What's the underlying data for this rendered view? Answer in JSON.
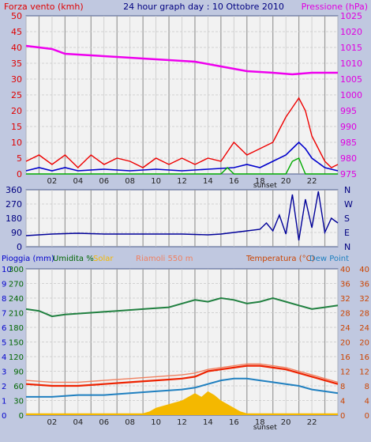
{
  "colors": {
    "background": "#c0c8e0",
    "plot_area": "#f2f2f2",
    "grid_major": "#999999",
    "grid_minor": "#c8c8c8",
    "border": "#4a5a8a",
    "axis_label": "#222222",
    "sunset": "#111111"
  },
  "chart_data": [
    {
      "id": "wind-pressure",
      "type": "line",
      "title": "24 hour graph day : 10 Ottobre 2010",
      "ylabel_left": "Forza vento (kmh)",
      "ylabel_right": "Pressione (hPa)",
      "x_ticks": [
        "02",
        "04",
        "06",
        "08",
        "10",
        "12",
        "14",
        "16",
        "18",
        "20",
        "22"
      ],
      "annotation": "sunset",
      "grid": true,
      "axes": {
        "left": {
          "ticks": [
            0,
            5,
            10,
            15,
            20,
            25,
            30,
            35,
            40,
            45,
            50
          ],
          "ylim": [
            0,
            50
          ],
          "color": "#e00000"
        },
        "right": {
          "ticks": [
            975,
            980,
            985,
            990,
            995,
            1000,
            1005,
            1010,
            1015,
            1020,
            1025
          ],
          "ylim": [
            975,
            1025
          ],
          "color": "#e000e0"
        }
      },
      "series": [
        {
          "name": "pressure",
          "axis": "right",
          "color": "#ee00ee",
          "width": 2.5,
          "points": [
            [
              0,
              1015.5
            ],
            [
              2,
              1014.5
            ],
            [
              3,
              1013
            ],
            [
              5,
              1012.5
            ],
            [
              7,
              1012
            ],
            [
              9,
              1011.5
            ],
            [
              11,
              1011
            ],
            [
              13,
              1010.5
            ],
            [
              15,
              1009
            ],
            [
              17,
              1007.5
            ],
            [
              19,
              1007
            ],
            [
              20.5,
              1006.5
            ],
            [
              22,
              1007
            ],
            [
              24,
              1007
            ]
          ]
        },
        {
          "name": "wind speed",
          "axis": "left",
          "color": "#ee0000",
          "width": 1.4,
          "points": [
            [
              0,
              4
            ],
            [
              1,
              6
            ],
            [
              2,
              3
            ],
            [
              3,
              6
            ],
            [
              4,
              2
            ],
            [
              5,
              6
            ],
            [
              6,
              3
            ],
            [
              7,
              5
            ],
            [
              8,
              4
            ],
            [
              9,
              2
            ],
            [
              10,
              5
            ],
            [
              11,
              3
            ],
            [
              12,
              5
            ],
            [
              13,
              3
            ],
            [
              14,
              5
            ],
            [
              15,
              4
            ],
            [
              16,
              10
            ],
            [
              17,
              6
            ],
            [
              18,
              8
            ],
            [
              19,
              10
            ],
            [
              19.5,
              14
            ],
            [
              20,
              18
            ],
            [
              20.5,
              21
            ],
            [
              21,
              24
            ],
            [
              21.5,
              20
            ],
            [
              22,
              12
            ],
            [
              22.5,
              8
            ],
            [
              23,
              4
            ],
            [
              23.5,
              2
            ],
            [
              24,
              3
            ]
          ]
        },
        {
          "name": "wind average",
          "axis": "left",
          "color": "#0000cc",
          "width": 1.6,
          "points": [
            [
              0,
              1
            ],
            [
              1,
              2
            ],
            [
              2,
              1
            ],
            [
              3,
              2
            ],
            [
              4,
              1
            ],
            [
              6,
              1.5
            ],
            [
              8,
              1
            ],
            [
              10,
              1.5
            ],
            [
              12,
              1
            ],
            [
              14,
              1.5
            ],
            [
              16,
              2
            ],
            [
              17,
              3
            ],
            [
              18,
              2
            ],
            [
              19,
              4
            ],
            [
              20,
              6
            ],
            [
              20.5,
              8
            ],
            [
              21,
              10
            ],
            [
              21.5,
              8
            ],
            [
              22,
              5
            ],
            [
              23,
              2
            ],
            [
              24,
              1
            ]
          ]
        },
        {
          "name": "wind gust",
          "axis": "left",
          "color": "#00aa00",
          "width": 1.4,
          "points": [
            [
              0,
              0
            ],
            [
              15,
              0
            ],
            [
              15.5,
              2
            ],
            [
              16,
              0
            ],
            [
              20,
              0
            ],
            [
              20.5,
              4
            ],
            [
              21,
              5
            ],
            [
              21.5,
              0
            ],
            [
              24,
              0
            ]
          ]
        }
      ]
    },
    {
      "id": "wind-direction",
      "type": "line",
      "x_ticks": [],
      "grid": true,
      "axes": {
        "left": {
          "ticks": [
            0,
            90,
            180,
            270,
            360
          ],
          "ylim": [
            0,
            360
          ],
          "color": "#000080"
        },
        "right": {
          "labels": [
            "N",
            "W",
            "S",
            "E",
            "N"
          ],
          "color": "#000080"
        }
      },
      "series": [
        {
          "name": "wind direction",
          "axis": "left",
          "color": "#000099",
          "width": 1.4,
          "points": [
            [
              0,
              70
            ],
            [
              2,
              80
            ],
            [
              4,
              85
            ],
            [
              6,
              80
            ],
            [
              8,
              80
            ],
            [
              10,
              80
            ],
            [
              12,
              80
            ],
            [
              14,
              75
            ],
            [
              15,
              80
            ],
            [
              16,
              90
            ],
            [
              17,
              100
            ],
            [
              18,
              110
            ],
            [
              18.5,
              150
            ],
            [
              19,
              100
            ],
            [
              19.5,
              200
            ],
            [
              20,
              80
            ],
            [
              20.5,
              330
            ],
            [
              21,
              40
            ],
            [
              21.5,
              300
            ],
            [
              22,
              120
            ],
            [
              22.5,
              350
            ],
            [
              23,
              90
            ],
            [
              23.5,
              180
            ],
            [
              24,
              150
            ]
          ]
        }
      ]
    },
    {
      "id": "rain-humidity-temperature",
      "type": "line",
      "labels": {
        "rain": "Pioggia (mm)",
        "humidity": "Umidita %",
        "solar": "Solar",
        "temperature": "Temperatura (°C)",
        "dew_point": "Dew Point",
        "center": "Riamoli 550 m"
      },
      "x_ticks": [
        "02",
        "04",
        "06",
        "08",
        "10",
        "12",
        "14",
        "16",
        "18",
        "20",
        "22"
      ],
      "annotation": "sunset",
      "grid": true,
      "axes": {
        "rain": {
          "ticks": [
            0,
            1,
            2,
            3,
            4,
            5,
            6,
            7,
            8,
            9,
            10
          ],
          "ylim": [
            0,
            10
          ],
          "color": "#0000cc"
        },
        "humidity": {
          "ticks": [
            0,
            30,
            60,
            90,
            120,
            150,
            180,
            210,
            240,
            270,
            300
          ],
          "ylim": [
            0,
            300
          ],
          "color": "#006600"
        },
        "temperature_left": {
          "ticks": [
            0,
            4,
            8,
            12,
            16,
            20,
            24,
            28,
            32,
            36,
            40
          ],
          "ylim": [
            0,
            40
          ],
          "color": "#cc4400"
        },
        "temperature_right": {
          "ticks": [
            0,
            4,
            8,
            12,
            16,
            20,
            24,
            28,
            32,
            36,
            40
          ],
          "ylim": [
            0,
            40
          ],
          "color": "#cc4400"
        }
      },
      "series": [
        {
          "name": "humidity",
          "axis": "temperature",
          "color": "#208040",
          "width": 2,
          "points": [
            [
              0,
              29
            ],
            [
              1,
              28.5
            ],
            [
              2,
              27
            ],
            [
              3,
              27.5
            ],
            [
              5,
              28
            ],
            [
              7,
              28.5
            ],
            [
              9,
              29
            ],
            [
              11,
              29.5
            ],
            [
              12,
              30.5
            ],
            [
              13,
              31.5
            ],
            [
              14,
              31
            ],
            [
              15,
              32
            ],
            [
              16,
              31.5
            ],
            [
              17,
              30.5
            ],
            [
              18,
              31
            ],
            [
              19,
              32
            ],
            [
              20,
              31
            ],
            [
              21,
              30
            ],
            [
              22,
              29
            ],
            [
              23,
              29.5
            ],
            [
              24,
              30
            ]
          ]
        },
        {
          "name": "temperature",
          "axis": "temperature",
          "color": "#ee2200",
          "width": 2.2,
          "points": [
            [
              0,
              8.5
            ],
            [
              2,
              8
            ],
            [
              4,
              8
            ],
            [
              6,
              8.5
            ],
            [
              8,
              9
            ],
            [
              10,
              9.5
            ],
            [
              12,
              10
            ],
            [
              13,
              10.5
            ],
            [
              14,
              12
            ],
            [
              15,
              12.5
            ],
            [
              16,
              13
            ],
            [
              17,
              13.5
            ],
            [
              18,
              13.5
            ],
            [
              19,
              13
            ],
            [
              20,
              12.5
            ],
            [
              21,
              11.5
            ],
            [
              22,
              10.5
            ],
            [
              23,
              9.5
            ],
            [
              24,
              8.5
            ]
          ]
        },
        {
          "name": "apparent temperature",
          "axis": "temperature",
          "color": "#f08060",
          "width": 1.4,
          "points": [
            [
              0,
              9.5
            ],
            [
              2,
              9
            ],
            [
              4,
              9
            ],
            [
              6,
              9.5
            ],
            [
              8,
              10
            ],
            [
              10,
              10.5
            ],
            [
              12,
              11
            ],
            [
              13,
              11.5
            ],
            [
              14,
              12.5
            ],
            [
              15,
              13
            ],
            [
              16,
              13.5
            ],
            [
              17,
              14
            ],
            [
              18,
              14
            ],
            [
              19,
              13.5
            ],
            [
              20,
              13
            ],
            [
              21,
              12
            ],
            [
              22,
              11
            ],
            [
              23,
              10
            ],
            [
              24,
              9
            ]
          ]
        },
        {
          "name": "dew point",
          "axis": "temperature",
          "color": "#2080c0",
          "width": 2,
          "points": [
            [
              0,
              5
            ],
            [
              2,
              5
            ],
            [
              4,
              5.5
            ],
            [
              6,
              5.5
            ],
            [
              8,
              6
            ],
            [
              10,
              6.5
            ],
            [
              12,
              7
            ],
            [
              13,
              7.5
            ],
            [
              14,
              8.5
            ],
            [
              15,
              9.5
            ],
            [
              16,
              10
            ],
            [
              17,
              10
            ],
            [
              18,
              9.5
            ],
            [
              19,
              9
            ],
            [
              20,
              8.5
            ],
            [
              21,
              8
            ],
            [
              22,
              7
            ],
            [
              23,
              6.5
            ],
            [
              24,
              6
            ]
          ]
        }
      ],
      "solar": {
        "axis": "temperature",
        "color": "#f4b800",
        "points": [
          [
            0,
            0.5
          ],
          [
            9,
            0.5
          ],
          [
            9.5,
            1
          ],
          [
            10,
            2
          ],
          [
            11,
            3
          ],
          [
            12,
            4
          ],
          [
            12.5,
            5
          ],
          [
            13,
            6
          ],
          [
            13.5,
            5
          ],
          [
            14,
            6.5
          ],
          [
            14.5,
            5.5
          ],
          [
            15,
            4
          ],
          [
            15.5,
            3
          ],
          [
            16,
            2
          ],
          [
            16.5,
            1
          ],
          [
            17,
            0.5
          ],
          [
            24,
            0.5
          ]
        ]
      },
      "rain": {
        "axis": "temperature",
        "color": "#f4b800",
        "points": [
          [
            0,
            0.5
          ],
          [
            24,
            0.5
          ]
        ]
      }
    }
  ]
}
